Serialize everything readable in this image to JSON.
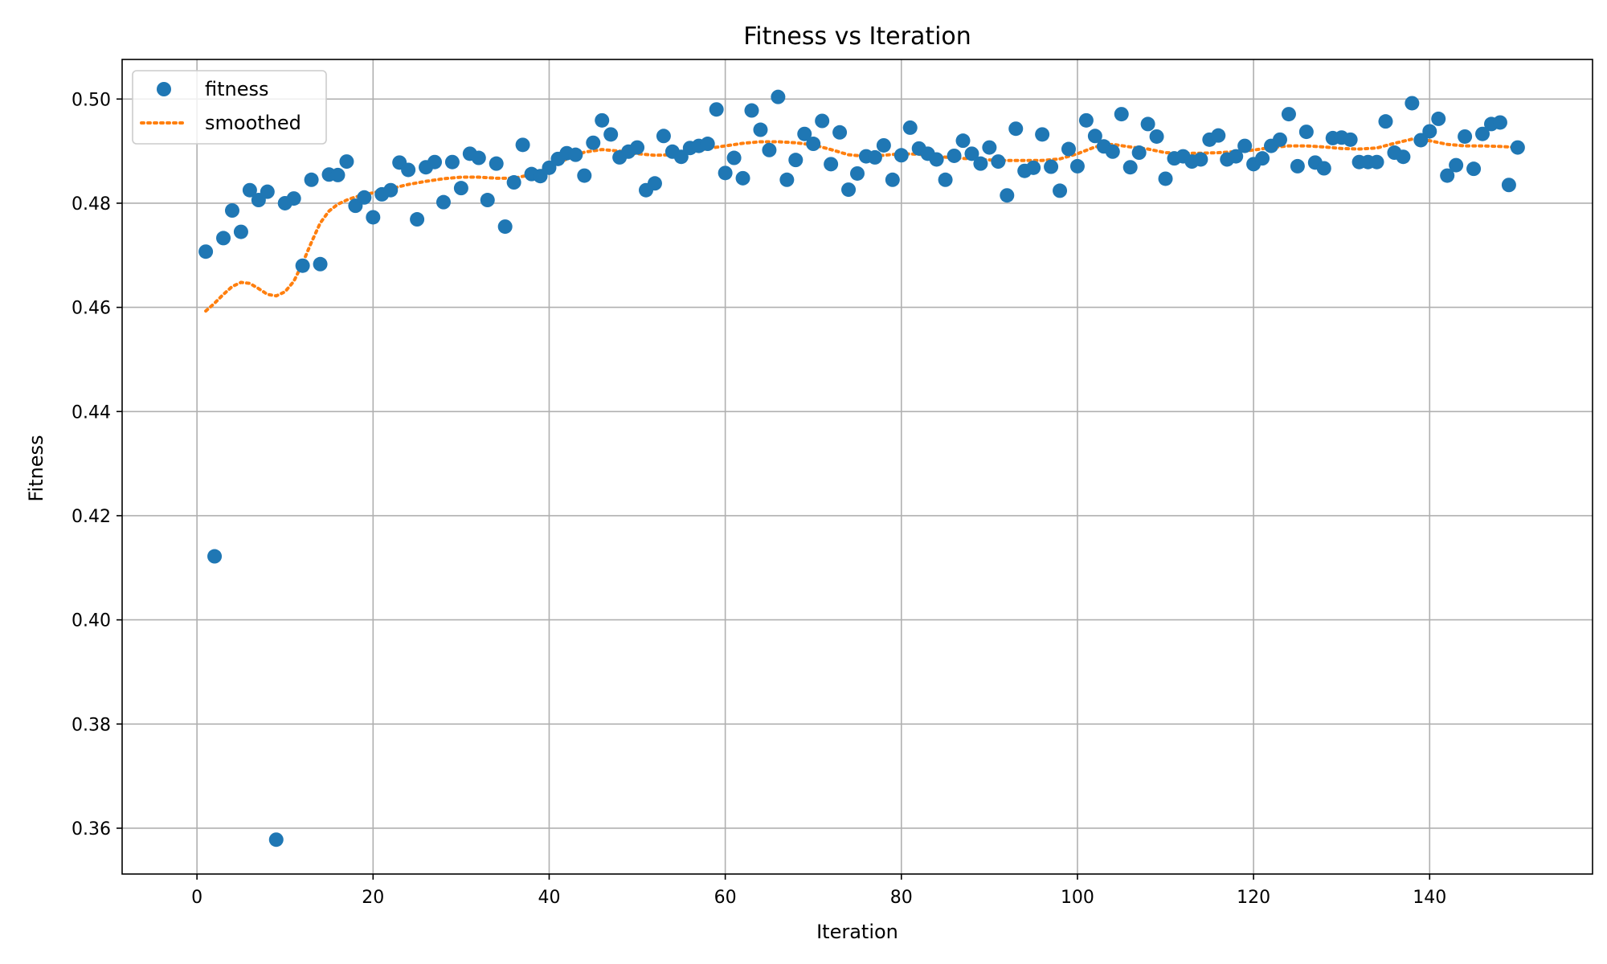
{
  "chart_data": {
    "type": "scatter",
    "title": "Fitness vs Iteration",
    "xlabel": "Iteration",
    "ylabel": "Fitness",
    "xlim": [
      -8.5,
      158.5
    ],
    "ylim": [
      0.3512,
      0.5076
    ],
    "xticks": [
      0,
      20,
      40,
      60,
      80,
      100,
      120,
      140
    ],
    "yticks": [
      0.36,
      0.38,
      0.4,
      0.42,
      0.44,
      0.46,
      0.48,
      0.5
    ],
    "xtick_labels": [
      "0",
      "20",
      "40",
      "60",
      "80",
      "100",
      "120",
      "140"
    ],
    "ytick_labels": [
      "0.36",
      "0.38",
      "0.40",
      "0.42",
      "0.44",
      "0.46",
      "0.48",
      "0.50"
    ],
    "grid": true,
    "legend_position": "top-left",
    "series": [
      {
        "name": "fitness",
        "style": "markers",
        "color": "#1f77b4",
        "x": [
          1,
          2,
          3,
          4,
          5,
          6,
          7,
          8,
          9,
          10,
          11,
          12,
          13,
          14,
          15,
          16,
          17,
          18,
          19,
          20,
          21,
          22,
          23,
          24,
          25,
          26,
          27,
          28,
          29,
          30,
          31,
          32,
          33,
          34,
          35,
          36,
          37,
          38,
          39,
          40,
          41,
          42,
          43,
          44,
          45,
          46,
          47,
          48,
          49,
          50,
          51,
          52,
          53,
          54,
          55,
          56,
          57,
          58,
          59,
          60,
          61,
          62,
          63,
          64,
          65,
          66,
          67,
          68,
          69,
          70,
          71,
          72,
          73,
          74,
          75,
          76,
          77,
          78,
          79,
          80,
          81,
          82,
          83,
          84,
          85,
          86,
          87,
          88,
          89,
          90,
          91,
          92,
          93,
          94,
          95,
          96,
          97,
          98,
          99,
          100,
          101,
          102,
          103,
          104,
          105,
          106,
          107,
          108,
          109,
          110,
          111,
          112,
          113,
          114,
          115,
          116,
          117,
          118,
          119,
          120,
          121,
          122,
          123,
          124,
          125,
          126,
          127,
          128,
          129,
          130,
          131,
          132,
          133,
          134,
          135,
          136,
          137,
          138,
          139,
          140,
          141,
          142,
          143,
          144,
          145,
          146,
          147,
          148,
          149,
          150
        ],
        "y": [
          0.4707,
          0.4122,
          0.4733,
          0.4786,
          0.4745,
          0.4825,
          0.4806,
          0.4822,
          0.3578,
          0.48,
          0.4809,
          0.468,
          0.4845,
          0.4683,
          0.4855,
          0.4854,
          0.488,
          0.4795,
          0.4811,
          0.4773,
          0.4817,
          0.4825,
          0.4878,
          0.4864,
          0.4769,
          0.4869,
          0.4879,
          0.4802,
          0.4879,
          0.4829,
          0.4895,
          0.4887,
          0.4806,
          0.4876,
          0.4755,
          0.484,
          0.4912,
          0.4856,
          0.4852,
          0.4868,
          0.4885,
          0.4896,
          0.4893,
          0.4853,
          0.4916,
          0.4959,
          0.4932,
          0.4888,
          0.4899,
          0.4907,
          0.4825,
          0.4838,
          0.4929,
          0.4899,
          0.4889,
          0.4906,
          0.491,
          0.4914,
          0.498,
          0.4858,
          0.4887,
          0.4848,
          0.4978,
          0.4941,
          0.4902,
          0.5004,
          0.4845,
          0.4883,
          0.4933,
          0.4914,
          0.4958,
          0.4875,
          0.4936,
          0.4826,
          0.4857,
          0.489,
          0.4888,
          0.4911,
          0.4845,
          0.4892,
          0.4945,
          0.4905,
          0.4895,
          0.4884,
          0.4845,
          0.4891,
          0.492,
          0.4895,
          0.4876,
          0.4907,
          0.488,
          0.4815,
          0.4943,
          0.4862,
          0.4868,
          0.4932,
          0.487,
          0.4824,
          0.4904,
          0.4871,
          0.4959,
          0.4929,
          0.4909,
          0.4899,
          0.4971,
          0.4869,
          0.4897,
          0.4952,
          0.4928,
          0.4847,
          0.4886,
          0.489,
          0.488,
          0.4884,
          0.4922,
          0.493,
          0.4884,
          0.489,
          0.491,
          0.4875,
          0.4886,
          0.491,
          0.4922,
          0.4971,
          0.4871,
          0.4937,
          0.4878,
          0.4867,
          0.4925,
          0.4926,
          0.4922,
          0.4879,
          0.4879,
          0.4879,
          0.4957,
          0.4897,
          0.4889,
          0.4992,
          0.4921,
          0.4938,
          0.4962,
          0.4853,
          0.4873,
          0.4928,
          0.4866,
          0.4933,
          0.4952,
          0.4955,
          0.4835,
          0.4907
        ]
      },
      {
        "name": "smoothed",
        "style": "dotted-line",
        "color": "#ff7f0e",
        "x": [
          1,
          2,
          3,
          4,
          5,
          6,
          7,
          8,
          9,
          10,
          11,
          12,
          13,
          14,
          15,
          16,
          17,
          18,
          19,
          20,
          22,
          24,
          26,
          28,
          30,
          32,
          34,
          36,
          38,
          40,
          42,
          44,
          46,
          48,
          50,
          52,
          54,
          56,
          58,
          60,
          62,
          64,
          66,
          68,
          70,
          72,
          74,
          76,
          78,
          80,
          82,
          84,
          86,
          88,
          90,
          92,
          94,
          96,
          98,
          100,
          102,
          104,
          106,
          108,
          110,
          112,
          114,
          116,
          118,
          120,
          122,
          124,
          126,
          128,
          130,
          132,
          134,
          136,
          138,
          140,
          142,
          144,
          146,
          148,
          150
        ],
        "y": [
          0.4593,
          0.4608,
          0.4625,
          0.464,
          0.4648,
          0.4646,
          0.4636,
          0.4625,
          0.4622,
          0.463,
          0.465,
          0.4685,
          0.4725,
          0.4762,
          0.4785,
          0.4798,
          0.4806,
          0.4812,
          0.4816,
          0.482,
          0.4828,
          0.4836,
          0.4842,
          0.4847,
          0.485,
          0.485,
          0.4848,
          0.4848,
          0.4855,
          0.4868,
          0.4885,
          0.4898,
          0.4903,
          0.49,
          0.4895,
          0.4892,
          0.4893,
          0.4898,
          0.4905,
          0.491,
          0.4915,
          0.4918,
          0.4918,
          0.4916,
          0.4912,
          0.4903,
          0.4893,
          0.489,
          0.4892,
          0.4895,
          0.4894,
          0.489,
          0.4887,
          0.4885,
          0.4883,
          0.4882,
          0.4882,
          0.4882,
          0.4885,
          0.4895,
          0.4908,
          0.4913,
          0.4908,
          0.4904,
          0.4897,
          0.4896,
          0.4896,
          0.4897,
          0.4899,
          0.4902,
          0.4907,
          0.491,
          0.491,
          0.4908,
          0.4905,
          0.4904,
          0.4906,
          0.4915,
          0.4923,
          0.492,
          0.4913,
          0.491,
          0.491,
          0.4909,
          0.4907
        ]
      }
    ]
  }
}
